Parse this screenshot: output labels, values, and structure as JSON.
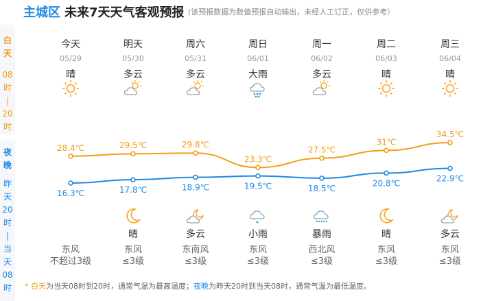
{
  "header": {
    "location": "主城区",
    "title": "未来7天天气客观预报",
    "note": "(该预报数据为数值预报自动输出，未经人工订正，仅供参考）"
  },
  "side": {
    "day_chars": [
      "白",
      "天",
      "08",
      "时",
      "|",
      "20",
      "时"
    ],
    "night_chars": [
      "夜",
      "晚",
      "昨",
      "天",
      "20",
      "时",
      "|",
      "当",
      "天",
      "08",
      "时"
    ]
  },
  "days": [
    {
      "name": "今天",
      "date": "05/29",
      "day_cond": "晴",
      "day_icon": "sun-icon",
      "night_cond": "",
      "night_icon": "",
      "wind_dir": "东风",
      "wind_level": "不超过3级"
    },
    {
      "name": "明天",
      "date": "05/30",
      "day_cond": "多云",
      "day_icon": "partly-cloudy-icon",
      "night_cond": "晴",
      "night_icon": "moon-icon",
      "wind_dir": "东风",
      "wind_level": "≤3级"
    },
    {
      "name": "周六",
      "date": "05/31",
      "day_cond": "多云",
      "day_icon": "partly-cloudy-icon",
      "night_cond": "多云",
      "night_icon": "cloudy-night-icon",
      "wind_dir": "东南风",
      "wind_level": "≤3级"
    },
    {
      "name": "周日",
      "date": "06/01",
      "day_cond": "大雨",
      "day_icon": "heavy-rain-icon",
      "night_cond": "小雨",
      "night_icon": "light-rain-icon",
      "wind_dir": "东风",
      "wind_level": "≤3级"
    },
    {
      "name": "周一",
      "date": "06/02",
      "day_cond": "多云",
      "day_icon": "partly-cloudy-icon",
      "night_cond": "暴雨",
      "night_icon": "rainstorm-icon",
      "wind_dir": "西北风",
      "wind_level": "≤3级"
    },
    {
      "name": "周二",
      "date": "06/03",
      "day_cond": "晴",
      "day_icon": "sun-icon",
      "night_cond": "晴",
      "night_icon": "moon-icon",
      "wind_dir": "东风",
      "wind_level": "≤3级"
    },
    {
      "name": "周三",
      "date": "06/04",
      "day_cond": "晴",
      "day_icon": "sun-icon",
      "night_cond": "多云",
      "night_icon": "cloudy-night-icon",
      "wind_dir": "东风",
      "wind_level": "≤3级"
    }
  ],
  "chart_data": {
    "type": "line",
    "categories": [
      "05/29",
      "05/30",
      "05/31",
      "06/01",
      "06/02",
      "06/03",
      "06/04"
    ],
    "series": [
      {
        "values": [
          28.4,
          29.5,
          29.8,
          23.3,
          27.5,
          31,
          34.5
        ],
        "labels": [
          "28.4℃",
          "29.5℃",
          "29.8℃",
          "23.3℃",
          "27.5℃",
          "31℃",
          "34.5℃"
        ],
        "color": "#f39c12"
      },
      {
        "values": [
          16.3,
          17.8,
          18.9,
          19.5,
          18.5,
          20.8,
          22.9
        ],
        "labels": [
          "16.3℃",
          "17.8℃",
          "18.9℃",
          "19.5℃",
          "18.5℃",
          "20.8℃",
          "22.9℃"
        ],
        "color": "#1e88e5"
      }
    ],
    "grid": false,
    "legend": "none"
  },
  "footer": {
    "prefix": "* ",
    "day_term": "白天",
    "day_text": "为当天08时到20时，通常气温为最高温度；",
    "night_term": "夜晚",
    "night_text": "为昨天20时到当天08时，通常气温为最低温度。"
  },
  "colors": {
    "accent": "#1e88e5",
    "high": "#f39c12",
    "low": "#1e88e5",
    "sun": "#f5a623"
  }
}
